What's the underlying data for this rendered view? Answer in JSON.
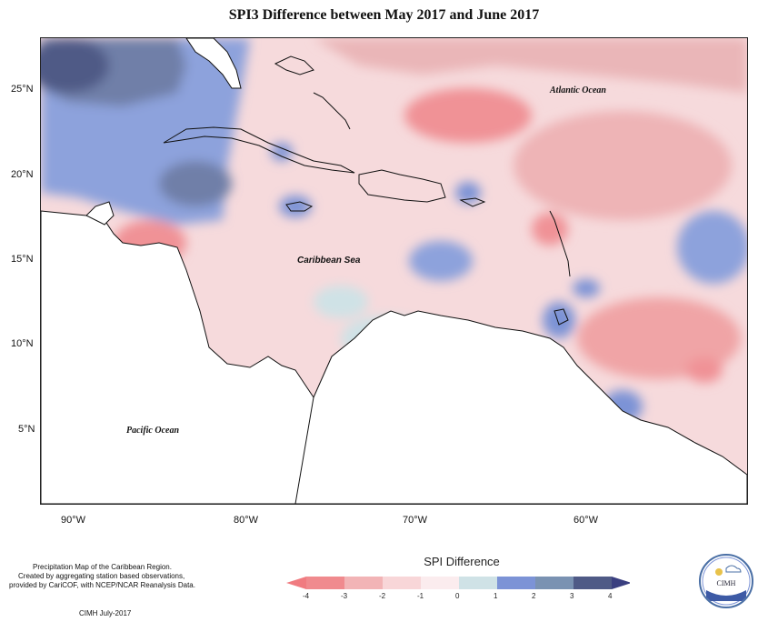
{
  "title": "SPI3 Difference between May 2017 and June 2017",
  "labels": {
    "atlantic": "Atlantic Ocean",
    "caribbean": "Caribbean Sea",
    "pacific": "Pacific Ocean"
  },
  "lat_ticks": [
    "25°N",
    "20°N",
    "15°N",
    "10°N",
    "5°N"
  ],
  "lon_ticks": [
    "90°W",
    "80°W",
    "70°W",
    "60°W"
  ],
  "footer": {
    "line1": "Precipitation Map of the Caribbean Region.",
    "line2": "Created by aggregating station based observations,",
    "line3": "provided by CariCOF, with NCEP/NCAR Reanalysis Data.",
    "credit": "CIMH July-2017"
  },
  "legend": {
    "title": "SPI Difference",
    "ticks": [
      "-4",
      "-3",
      "-2",
      "-1",
      "0",
      "1",
      "2",
      "3",
      "4"
    ],
    "colors": [
      "#f08a8e",
      "#f2b4b6",
      "#f8d6d8",
      "#fbecee",
      "#cfe2e6",
      "#7c93d6",
      "#7a92b2",
      "#4f5a86"
    ],
    "end_low": "#f07b80",
    "end_high": "#3a3f80"
  },
  "logo": {
    "text": "CIMH"
  }
}
